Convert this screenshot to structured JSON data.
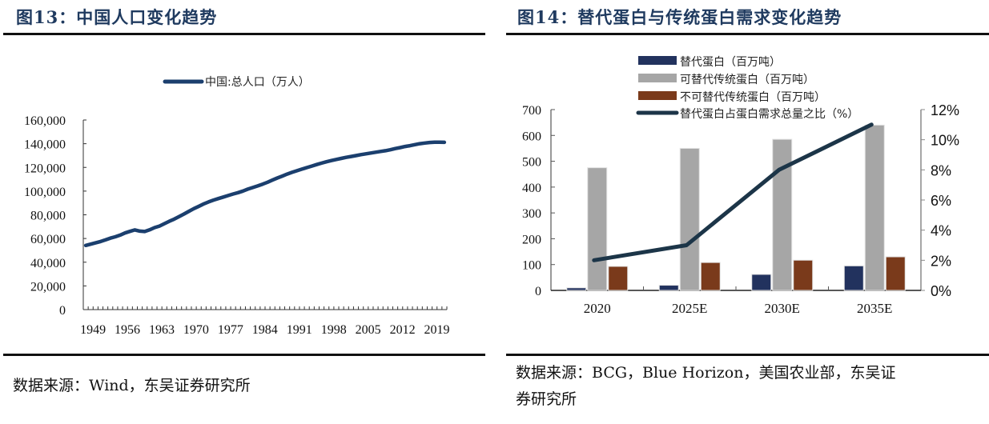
{
  "figure13": {
    "title": "图13：中国人口变化趋势",
    "source": "数据来源：Wind，东吴证券研究所"
  },
  "figure14": {
    "title": "图14：替代蛋白与传统蛋白需求变化趋势",
    "source_line1": "数据来源：BCG，Blue Horizon，美国农业部，东吴证",
    "source_line2": "券研究所"
  },
  "chart_data": [
    {
      "type": "line",
      "title": "中国人口变化趋势",
      "xlabel": "",
      "ylabel": "",
      "legend": [
        "中国:总人口（万人）"
      ],
      "legend_position": "top-center",
      "grid": false,
      "ylim": [
        0,
        160000
      ],
      "yticks": [
        0,
        20000,
        40000,
        60000,
        80000,
        100000,
        120000,
        140000,
        160000
      ],
      "ytick_labels": [
        "0",
        "20,000",
        "40,000",
        "60,000",
        "80,000",
        "100,000",
        "120,000",
        "140,000",
        "160,000"
      ],
      "xtick_labels": [
        "1949",
        "1956",
        "1963",
        "1970",
        "1977",
        "1984",
        "1991",
        "1998",
        "2005",
        "2012",
        "2019"
      ],
      "color": "#1b3f6e",
      "x": [
        1949,
        1950,
        1951,
        1952,
        1953,
        1954,
        1955,
        1956,
        1957,
        1958,
        1959,
        1960,
        1961,
        1962,
        1963,
        1964,
        1965,
        1966,
        1967,
        1968,
        1969,
        1970,
        1971,
        1972,
        1973,
        1974,
        1975,
        1976,
        1977,
        1978,
        1979,
        1980,
        1981,
        1982,
        1983,
        1984,
        1985,
        1986,
        1987,
        1988,
        1989,
        1990,
        1991,
        1992,
        1993,
        1994,
        1995,
        1996,
        1997,
        1998,
        1999,
        2000,
        2001,
        2002,
        2003,
        2004,
        2005,
        2006,
        2007,
        2008,
        2009,
        2010,
        2011,
        2012,
        2013,
        2014,
        2015,
        2016,
        2017,
        2018,
        2019,
        2020,
        2021,
        2022
      ],
      "values": [
        54167,
        55196,
        56300,
        57482,
        58796,
        60266,
        61465,
        62828,
        64653,
        65994,
        67207,
        66207,
        65859,
        67296,
        69172,
        70499,
        72538,
        74542,
        76368,
        78534,
        80671,
        82992,
        85229,
        87177,
        89211,
        90859,
        92420,
        93717,
        94974,
        96259,
        97542,
        98705,
        100072,
        101654,
        103008,
        104357,
        105851,
        107507,
        109300,
        111026,
        112704,
        114333,
        115823,
        117171,
        118517,
        119850,
        121121,
        122389,
        123626,
        124761,
        125786,
        126743,
        127627,
        128453,
        129227,
        129988,
        130756,
        131448,
        132129,
        132802,
        133450,
        134091,
        134916,
        135922,
        136726,
        137646,
        138326,
        139232,
        140011,
        140541,
        141008,
        141212,
        141260,
        141175
      ]
    },
    {
      "type": "bar",
      "title": "替代蛋白与传统蛋白需求变化趋势",
      "categories": [
        "2020",
        "2025E",
        "2030E",
        "2035E"
      ],
      "series": [
        {
          "name": "替代蛋白（百万吨）",
          "axis": "left",
          "kind": "bar",
          "color": "#22325e",
          "values": [
            10,
            20,
            62,
            95
          ]
        },
        {
          "name": "可替代传统蛋白（百万吨）",
          "axis": "left",
          "kind": "bar",
          "color": "#a6a6a6",
          "values": [
            475,
            550,
            585,
            640
          ]
        },
        {
          "name": "不可替代传统蛋白（百万吨）",
          "axis": "left",
          "kind": "bar",
          "color": "#7a3a1b",
          "values": [
            93,
            108,
            117,
            130
          ]
        },
        {
          "name": "替代蛋白占蛋白需求总量之比（%）",
          "axis": "right",
          "kind": "line",
          "color": "#1c3548",
          "values": [
            2,
            3,
            8,
            11
          ]
        }
      ],
      "ylim_left": [
        0,
        700
      ],
      "yticks_left": [
        0,
        100,
        200,
        300,
        400,
        500,
        600,
        700
      ],
      "ylim_right": [
        0,
        12
      ],
      "yticks_right": [
        0,
        2,
        4,
        6,
        8,
        10,
        12
      ],
      "ytick_labels_right": [
        "0%",
        "2%",
        "4%",
        "6%",
        "8%",
        "10%",
        "12%"
      ],
      "legend_position": "top-center",
      "grid": false
    }
  ]
}
